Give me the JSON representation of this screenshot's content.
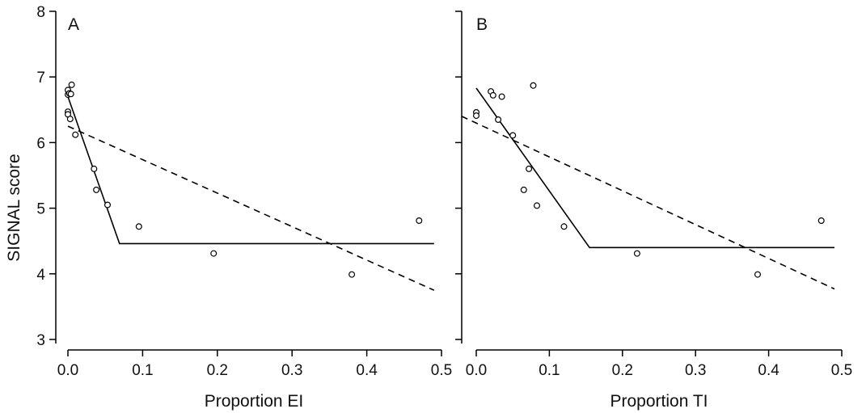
{
  "chart_data": [
    {
      "type": "scatter",
      "panel_label": "A",
      "xlabel": "Proportion EI",
      "ylabel": "SIGNAL score",
      "xlim": [
        -0.02,
        0.5
      ],
      "ylim": [
        2.85,
        8.0
      ],
      "x_ticks": [
        0.0,
        0.1,
        0.2,
        0.3,
        0.4,
        0.5
      ],
      "x_tick_labels": [
        "0.0",
        "0.1",
        "0.2",
        "0.3",
        "0.4",
        "0.5"
      ],
      "y_ticks": [
        3,
        4,
        5,
        6,
        7,
        8
      ],
      "y_tick_labels": [
        "3",
        "4",
        "5",
        "6",
        "7",
        "8"
      ],
      "grid": false,
      "points": {
        "x": [
          0.0,
          0.0,
          0.0,
          0.0,
          0.002,
          0.003,
          0.004,
          0.005,
          0.01,
          0.035,
          0.038,
          0.053,
          0.095,
          0.195,
          0.38,
          0.47
        ],
        "y": [
          6.8,
          6.73,
          6.47,
          6.43,
          6.75,
          6.36,
          6.74,
          6.88,
          6.12,
          5.6,
          5.28,
          5.05,
          4.72,
          4.31,
          3.99,
          4.81
        ]
      },
      "lines": [
        {
          "style": "solid",
          "x": [
            0.0,
            0.069,
            0.49
          ],
          "y": [
            6.7,
            4.46,
            4.46
          ]
        },
        {
          "style": "dashed",
          "x": [
            0.0,
            0.49
          ],
          "y": [
            6.25,
            3.75
          ]
        }
      ]
    },
    {
      "type": "scatter",
      "panel_label": "B",
      "xlabel": "Proportion TI",
      "ylabel": "",
      "xlim": [
        -0.02,
        0.5
      ],
      "ylim": [
        2.85,
        8.0
      ],
      "x_ticks": [
        0.0,
        0.1,
        0.2,
        0.3,
        0.4,
        0.5
      ],
      "x_tick_labels": [
        "0.0",
        "0.1",
        "0.2",
        "0.3",
        "0.4",
        "0.5"
      ],
      "y_ticks": [
        3,
        4,
        5,
        6,
        7,
        8
      ],
      "y_tick_labels": [],
      "grid": false,
      "points": {
        "x": [
          0.0,
          0.0,
          0.02,
          0.023,
          0.03,
          0.035,
          0.05,
          0.065,
          0.072,
          0.078,
          0.083,
          0.12,
          0.22,
          0.385,
          0.472
        ],
        "y": [
          6.46,
          6.41,
          6.78,
          6.72,
          6.35,
          6.7,
          6.11,
          5.28,
          5.6,
          6.87,
          5.04,
          4.72,
          4.31,
          3.99,
          4.81
        ]
      },
      "lines": [
        {
          "style": "solid",
          "x": [
            0.0,
            0.155,
            0.49
          ],
          "y": [
            6.83,
            4.4,
            4.4
          ]
        },
        {
          "style": "dashed",
          "x": [
            -0.02,
            0.49
          ],
          "y": [
            6.4,
            3.77
          ]
        }
      ]
    }
  ]
}
